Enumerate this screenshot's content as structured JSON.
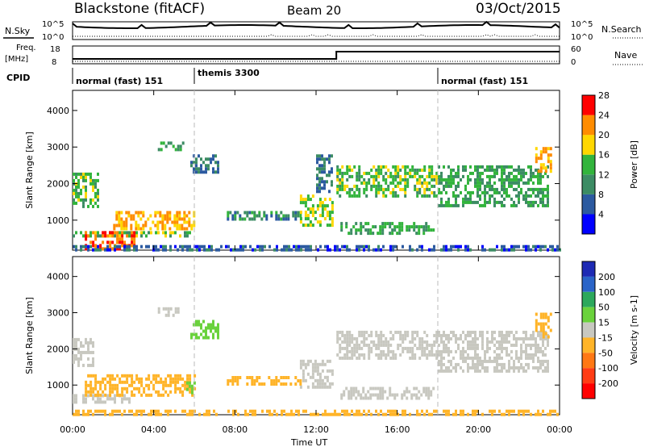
{
  "header": {
    "station": "Blackstone (fitACF)",
    "beam": "Beam 20",
    "date": "03/Oct/2015"
  },
  "panels": {
    "nsky_label": "N.Sky",
    "nsearch_label": "N.Search",
    "freq_label_line1": "Freq.",
    "freq_label_line2": "[MHz]",
    "nave_label": "Nave",
    "cpid_label": "CPID",
    "noise_ticks": [
      "10^5",
      "10^0"
    ],
    "freq_ticks": [
      "18",
      "8"
    ],
    "nave_ticks": [
      "60",
      "0"
    ]
  },
  "cpid_segments": [
    {
      "label": "normal (fast) 151",
      "start_hour": 0,
      "end_hour": 6
    },
    {
      "label": "themis 3300",
      "start_hour": 6,
      "end_hour": 18
    },
    {
      "label": "normal (fast) 151",
      "start_hour": 18,
      "end_hour": 24
    }
  ],
  "chart_data": [
    {
      "type": "heatmap",
      "title": "",
      "xlabel": "Time UT",
      "ylabel": "Slant Range [km]",
      "xlim": [
        0,
        24
      ],
      "ylim": [
        180,
        4550
      ],
      "x_ticks": [
        "00:00",
        "04:00",
        "08:00",
        "12:00",
        "16:00",
        "20:00",
        "00:00"
      ],
      "y_ticks": [
        1000,
        2000,
        3000,
        4000
      ],
      "colorbar": {
        "label": "Power [dB]",
        "ticks": [
          4,
          8,
          12,
          16,
          20,
          24,
          28
        ],
        "colors": [
          "#0000ff",
          "#2c5aa0",
          "#3c8c64",
          "#32b43c",
          "#ffd700",
          "#ff8c00",
          "#ff0000"
        ]
      },
      "echo_regions": [
        {
          "t0": 0.0,
          "t1": 5.8,
          "r0": 550,
          "r1": 700,
          "value": 14
        },
        {
          "t0": 0.6,
          "t1": 3.0,
          "r0": 200,
          "r1": 700,
          "value": 24
        },
        {
          "t0": 2.0,
          "t1": 6.0,
          "r0": 800,
          "r1": 1250,
          "value": 20
        },
        {
          "t0": 0.0,
          "t1": 1.2,
          "r0": 1400,
          "r1": 2300,
          "value": 14
        },
        {
          "t0": 4.2,
          "t1": 5.4,
          "r0": 2950,
          "r1": 3150,
          "value": 12
        },
        {
          "t0": 5.8,
          "t1": 7.2,
          "r0": 2300,
          "r1": 2800,
          "value": 8
        },
        {
          "t0": 7.6,
          "t1": 11.2,
          "r0": 1000,
          "r1": 1250,
          "value": 10
        },
        {
          "t0": 11.2,
          "t1": 12.8,
          "r0": 900,
          "r1": 1700,
          "value": 16
        },
        {
          "t0": 12.0,
          "t1": 12.8,
          "r0": 1800,
          "r1": 2800,
          "value": 8
        },
        {
          "t0": 13.0,
          "t1": 18.0,
          "r0": 1700,
          "r1": 2500,
          "value": 14
        },
        {
          "t0": 13.2,
          "t1": 17.8,
          "r0": 650,
          "r1": 950,
          "value": 12
        },
        {
          "t0": 18.0,
          "t1": 23.4,
          "r0": 1400,
          "r1": 2500,
          "value": 12
        },
        {
          "t0": 22.8,
          "t1": 23.6,
          "r0": 2300,
          "r1": 3000,
          "value": 20
        },
        {
          "t0": 0.0,
          "t1": 24.0,
          "r0": 180,
          "r1": 320,
          "value": 6
        }
      ]
    },
    {
      "type": "heatmap",
      "title": "",
      "xlabel": "Time UT",
      "ylabel": "Slant Range [km]",
      "xlim": [
        0,
        24
      ],
      "ylim": [
        180,
        4550
      ],
      "x_ticks": [
        "00:00",
        "04:00",
        "08:00",
        "12:00",
        "16:00",
        "20:00",
        "00:00"
      ],
      "y_ticks": [
        1000,
        2000,
        3000,
        4000
      ],
      "colorbar": {
        "label": "Velocity [m s-1]",
        "ticks": [
          200,
          100,
          50,
          15,
          -15,
          -50,
          -100,
          -200
        ],
        "colors": [
          "#1e2ab4",
          "#2a64c8",
          "#2ca85c",
          "#6ad23c",
          "#c8c8c0",
          "#ffb428",
          "#ff7814",
          "#ff3c14",
          "#ff0000"
        ]
      },
      "echo_regions": [
        {
          "t0": 0.0,
          "t1": 2.8,
          "r0": 550,
          "r1": 750,
          "value": 0
        },
        {
          "t0": 0.6,
          "t1": 6.0,
          "r0": 700,
          "r1": 1300,
          "value": -30
        },
        {
          "t0": 5.6,
          "t1": 6.0,
          "r0": 750,
          "r1": 1100,
          "value": 30
        },
        {
          "t0": 0.0,
          "t1": 1.0,
          "r0": 1500,
          "r1": 2300,
          "value": 0
        },
        {
          "t0": 4.2,
          "t1": 5.2,
          "r0": 2950,
          "r1": 3150,
          "value": 0
        },
        {
          "t0": 5.8,
          "t1": 7.2,
          "r0": 2300,
          "r1": 2800,
          "value": 40
        },
        {
          "t0": 7.6,
          "t1": 11.2,
          "r0": 1000,
          "r1": 1250,
          "value": -30
        },
        {
          "t0": 11.2,
          "t1": 12.8,
          "r0": 900,
          "r1": 1700,
          "value": 0
        },
        {
          "t0": 13.0,
          "t1": 18.0,
          "r0": 1700,
          "r1": 2500,
          "value": 0
        },
        {
          "t0": 13.2,
          "t1": 17.8,
          "r0": 650,
          "r1": 950,
          "value": 0
        },
        {
          "t0": 18.0,
          "t1": 23.4,
          "r0": 1400,
          "r1": 2500,
          "value": 0
        },
        {
          "t0": 22.8,
          "t1": 23.6,
          "r0": 2300,
          "r1": 3000,
          "value": -30
        },
        {
          "t0": 0.0,
          "t1": 24.0,
          "r0": 180,
          "r1": 320,
          "value": -30
        }
      ]
    }
  ]
}
